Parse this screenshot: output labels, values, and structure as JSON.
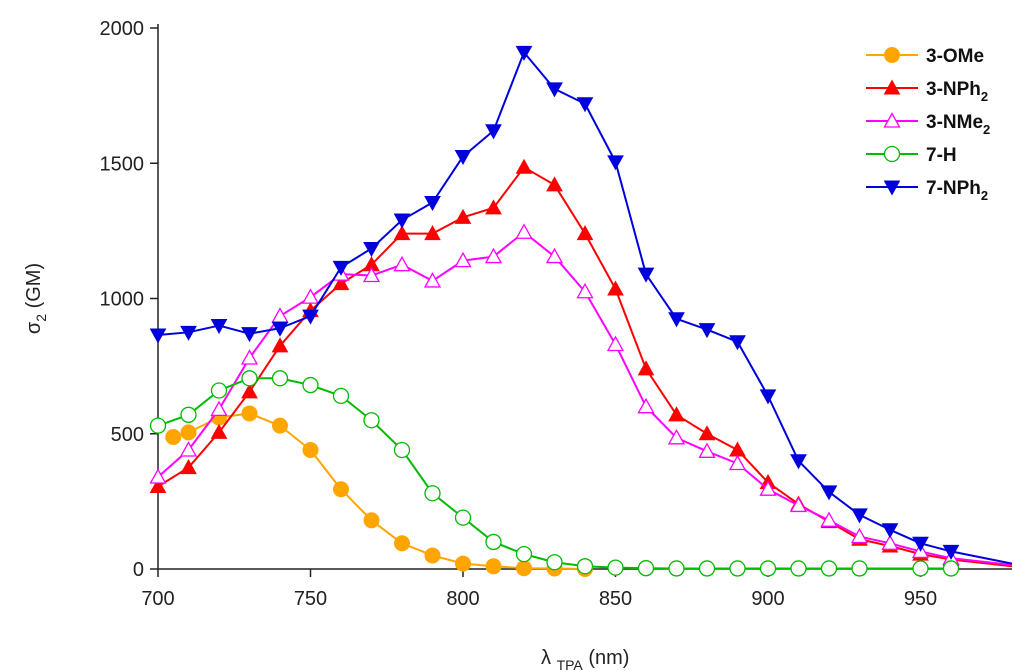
{
  "chart_data": {
    "type": "line",
    "xlabel": {
      "main": "λ",
      "sub": "TPA",
      "unit": " (nm)"
    },
    "ylabel": {
      "main": "σ",
      "sub": "2",
      "unit": " (GM)"
    },
    "xlim": [
      700,
      980
    ],
    "ylim": [
      0,
      2000
    ],
    "xticks": [
      700,
      750,
      800,
      850,
      900,
      950
    ],
    "yticks": [
      0,
      500,
      1000,
      1500,
      2000
    ],
    "grid": false,
    "legend_position": "top-right",
    "series": [
      {
        "name": "3-OMe",
        "name_main": "3-OMe",
        "name_sub": "",
        "color": "#FFA500",
        "marker": "circle-filled",
        "x": [
          705,
          710,
          720,
          730,
          740,
          750,
          760,
          770,
          780,
          790,
          800,
          810,
          820,
          830,
          840
        ],
        "y": [
          488,
          505,
          560,
          575,
          530,
          440,
          295,
          180,
          95,
          50,
          20,
          10,
          3,
          2,
          0
        ]
      },
      {
        "name": "3-NPh2",
        "name_main": "3-NPh",
        "name_sub": "2",
        "color": "#FF0000",
        "marker": "triangle-up-filled",
        "x": [
          700,
          710,
          720,
          730,
          740,
          750,
          760,
          770,
          780,
          790,
          800,
          810,
          820,
          830,
          840,
          850,
          860,
          870,
          880,
          890,
          900,
          910,
          920,
          930,
          940,
          950,
          960,
          980
        ],
        "y": [
          305,
          375,
          505,
          655,
          825,
          955,
          1055,
          1125,
          1240,
          1240,
          1300,
          1335,
          1485,
          1420,
          1240,
          1035,
          740,
          570,
          500,
          440,
          320,
          240,
          175,
          110,
          85,
          55,
          35,
          10
        ]
      },
      {
        "name": "3-NMe2",
        "name_main": "3-NMe",
        "name_sub": "2",
        "color": "#FF00FF",
        "marker": "triangle-up-open",
        "x": [
          700,
          710,
          720,
          730,
          740,
          750,
          760,
          770,
          780,
          790,
          800,
          810,
          820,
          830,
          840,
          850,
          860,
          870,
          880,
          890,
          900,
          910,
          920,
          930,
          940,
          950,
          960,
          980
        ],
        "y": [
          340,
          440,
          590,
          780,
          935,
          1005,
          1090,
          1085,
          1125,
          1065,
          1140,
          1155,
          1245,
          1155,
          1025,
          830,
          600,
          485,
          435,
          390,
          295,
          235,
          180,
          120,
          95,
          65,
          40,
          15
        ]
      },
      {
        "name": "7-H",
        "name_main": "7-H",
        "name_sub": "",
        "color": "#00BB00",
        "marker": "circle-open",
        "x": [
          700,
          710,
          720,
          730,
          740,
          750,
          760,
          770,
          780,
          790,
          800,
          810,
          820,
          830,
          840,
          850,
          860,
          870,
          880,
          890,
          900,
          910,
          920,
          930,
          950,
          960
        ],
        "y": [
          530,
          570,
          660,
          705,
          705,
          680,
          640,
          550,
          440,
          280,
          190,
          100,
          55,
          25,
          10,
          5,
          3,
          2,
          2,
          2,
          2,
          2,
          2,
          2,
          2,
          2
        ]
      },
      {
        "name": "7-NPh2",
        "name_main": "7-NPh",
        "name_sub": "2",
        "color": "#0000DD",
        "marker": "triangle-down-filled",
        "x": [
          700,
          710,
          720,
          730,
          740,
          750,
          760,
          770,
          780,
          790,
          800,
          810,
          820,
          830,
          840,
          850,
          860,
          870,
          880,
          890,
          900,
          910,
          920,
          930,
          940,
          950,
          960,
          980
        ],
        "y": [
          865,
          875,
          900,
          870,
          890,
          935,
          1115,
          1185,
          1290,
          1355,
          1525,
          1620,
          1910,
          1775,
          1720,
          1505,
          1090,
          925,
          885,
          840,
          640,
          400,
          285,
          200,
          145,
          95,
          65,
          20
        ]
      }
    ]
  }
}
